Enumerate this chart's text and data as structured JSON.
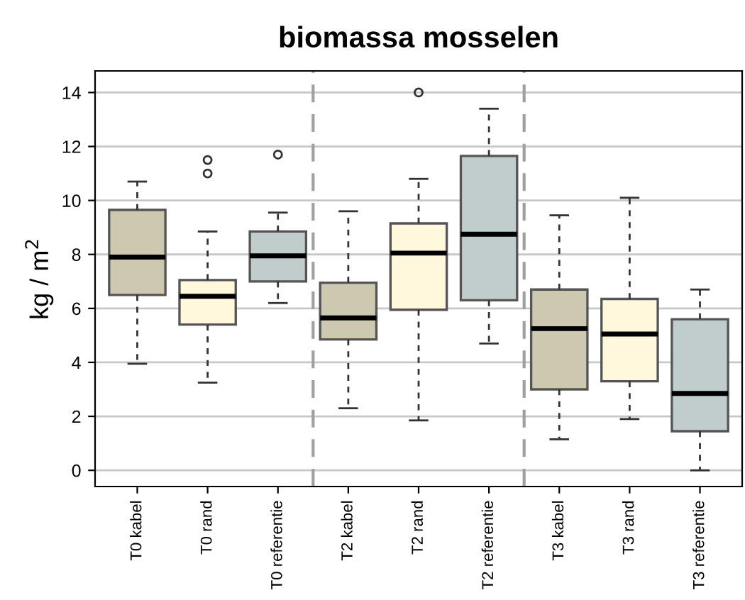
{
  "chart_data": {
    "type": "box",
    "title": "biomassa mosselen",
    "ylabel": "kg / m$^{2}$",
    "categories": [
      "T0 kabel",
      "T0 rand",
      "T0 referentie",
      "T2 kabel",
      "T2 rand",
      "T2 referentie",
      "T3 kabel",
      "T3 rand",
      "T3 referentie"
    ],
    "colors": [
      "#cdc8b0",
      "#fff8dc",
      "#c1cdcd",
      "#cdc8b0",
      "#fff8dc",
      "#c1cdcd",
      "#cdc8b0",
      "#fff8dc",
      "#c1cdcd"
    ],
    "boxes": [
      {
        "low": 3.95,
        "q1": 6.5,
        "median": 7.9,
        "q3": 9.65,
        "high": 10.7
      },
      {
        "low": 3.25,
        "q1": 5.4,
        "median": 6.45,
        "q3": 7.05,
        "high": 8.85,
        "outliers": [
          11.0,
          11.5
        ]
      },
      {
        "low": 6.2,
        "q1": 7.0,
        "median": 7.95,
        "q3": 8.85,
        "high": 9.55,
        "outliers": [
          11.7
        ]
      },
      {
        "low": 2.3,
        "q1": 4.85,
        "median": 5.65,
        "q3": 6.95,
        "high": 9.6
      },
      {
        "low": 1.85,
        "q1": 5.95,
        "median": 8.05,
        "q3": 9.15,
        "high": 10.8,
        "outliers": [
          14.0
        ]
      },
      {
        "low": 4.7,
        "q1": 6.3,
        "median": 8.75,
        "q3": 11.65,
        "high": 13.4
      },
      {
        "low": 1.15,
        "q1": 3.0,
        "median": 5.25,
        "q3": 6.7,
        "high": 9.45
      },
      {
        "low": 1.9,
        "q1": 3.3,
        "median": 5.05,
        "q3": 6.35,
        "high": 10.1
      },
      {
        "low": 0.0,
        "q1": 1.45,
        "median": 2.85,
        "q3": 5.6,
        "high": 6.7
      }
    ],
    "ylim": [
      -0.6,
      14.8
    ],
    "yticks": [
      0,
      2,
      4,
      6,
      8,
      10,
      12,
      14
    ],
    "grid": "y"
  }
}
